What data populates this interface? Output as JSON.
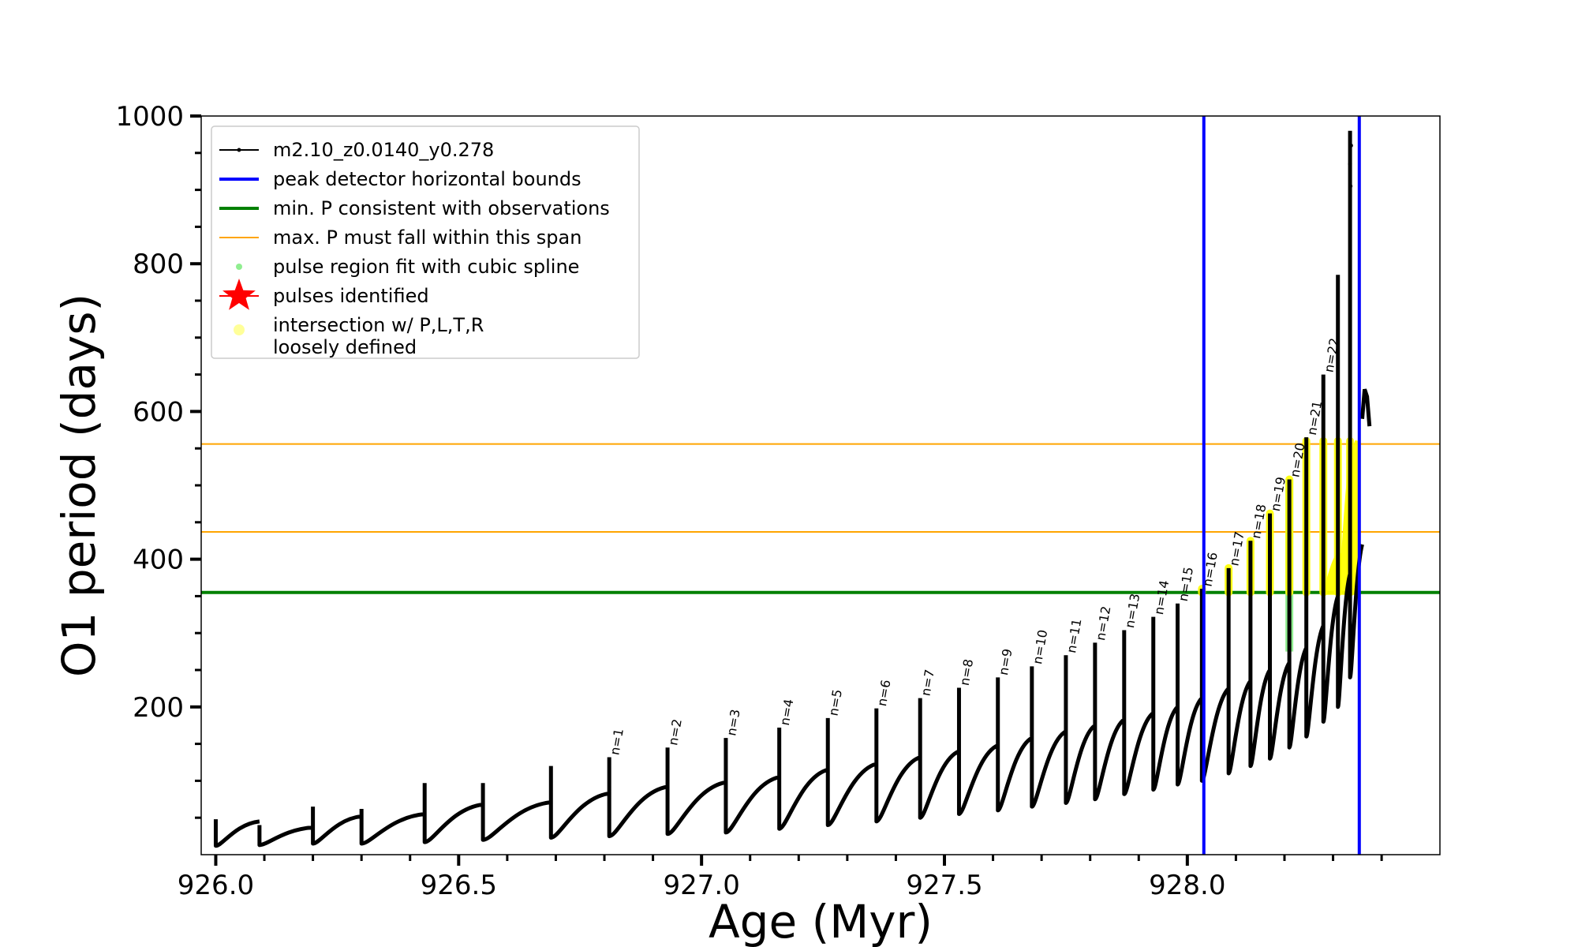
{
  "chart_data": {
    "type": "line",
    "title": "",
    "xlabel": "Age (Myr)",
    "ylabel": "O1 period (days)",
    "xlim": [
      925.97,
      928.52
    ],
    "ylim": [
      0,
      1000
    ],
    "x_ticks": [
      926.0,
      926.5,
      927.0,
      927.5,
      928.0
    ],
    "x_tick_labels": [
      "926.0",
      "926.5",
      "927.0",
      "927.5",
      "928.0"
    ],
    "y_ticks": [
      200,
      400,
      600,
      800,
      1000
    ],
    "y_tick_labels": [
      "200",
      "400",
      "600",
      "800",
      "1000"
    ],
    "grid": false,
    "legend_position": "upper-left",
    "legend": [
      {
        "label": "m2.10_z0.0140_y0.278",
        "kind": "line-marker",
        "color": "#000000"
      },
      {
        "label": "peak detector horizontal bounds",
        "kind": "line",
        "color": "#0000ff"
      },
      {
        "label": "min. P consistent with observations",
        "kind": "line",
        "color": "#008000"
      },
      {
        "label": "max. P must fall within this span",
        "kind": "thin-line",
        "color": "#ffa500"
      },
      {
        "label": "pulse region fit with cubic spline",
        "kind": "dot",
        "color": "#90ee90"
      },
      {
        "label": "pulses identified",
        "kind": "star",
        "color": "#ff0000"
      },
      {
        "label_lines": [
          "intersection w/ P,L,T,R",
          "loosely defined"
        ],
        "kind": "dot",
        "color": "#ffff99"
      }
    ],
    "vertical_bounds": [
      928.034,
      928.354
    ],
    "min_period_line": 355,
    "max_period_span": [
      437,
      556
    ],
    "pulses": [
      {
        "x": 926.0,
        "base": 45,
        "floor": 12,
        "peak": 48,
        "label": ""
      },
      {
        "x": 926.09,
        "base": 37,
        "floor": 13,
        "peak": 40,
        "label": ""
      },
      {
        "x": 926.2,
        "base": 52,
        "floor": 15,
        "peak": 65,
        "label": ""
      },
      {
        "x": 926.3,
        "base": 55,
        "floor": 15,
        "peak": 62,
        "label": ""
      },
      {
        "x": 926.43,
        "base": 68,
        "floor": 17,
        "peak": 97,
        "label": ""
      },
      {
        "x": 926.55,
        "base": 71,
        "floor": 20,
        "peak": 97,
        "label": ""
      },
      {
        "x": 926.69,
        "base": 83,
        "floor": 23,
        "peak": 120,
        "label": ""
      },
      {
        "x": 926.81,
        "base": 92,
        "floor": 25,
        "peak": 132,
        "label": "n=1"
      },
      {
        "x": 926.93,
        "base": 98,
        "floor": 28,
        "peak": 145,
        "label": "n=2"
      },
      {
        "x": 927.05,
        "base": 105,
        "floor": 30,
        "peak": 158,
        "label": "n=3"
      },
      {
        "x": 927.16,
        "base": 115,
        "floor": 35,
        "peak": 172,
        "label": "n=4"
      },
      {
        "x": 927.26,
        "base": 123,
        "floor": 40,
        "peak": 185,
        "label": "n=5"
      },
      {
        "x": 927.36,
        "base": 132,
        "floor": 45,
        "peak": 198,
        "label": "n=6"
      },
      {
        "x": 927.45,
        "base": 140,
        "floor": 50,
        "peak": 212,
        "label": "n=7"
      },
      {
        "x": 927.53,
        "base": 148,
        "floor": 55,
        "peak": 226,
        "label": "n=8"
      },
      {
        "x": 927.61,
        "base": 158,
        "floor": 60,
        "peak": 240,
        "label": "n=9"
      },
      {
        "x": 927.68,
        "base": 167,
        "floor": 65,
        "peak": 255,
        "label": "n=10"
      },
      {
        "x": 927.75,
        "base": 175,
        "floor": 70,
        "peak": 270,
        "label": "n=11"
      },
      {
        "x": 927.81,
        "base": 183,
        "floor": 75,
        "peak": 287,
        "label": "n=12"
      },
      {
        "x": 927.87,
        "base": 192,
        "floor": 82,
        "peak": 304,
        "label": "n=13"
      },
      {
        "x": 927.93,
        "base": 200,
        "floor": 88,
        "peak": 322,
        "label": "n=14"
      },
      {
        "x": 927.98,
        "base": 212,
        "floor": 95,
        "peak": 340,
        "label": "n=15"
      },
      {
        "x": 928.03,
        "base": 225,
        "floor": 100,
        "peak": 360,
        "label": "n=16"
      },
      {
        "x": 928.085,
        "base": 235,
        "floor": 110,
        "peak": 388,
        "label": "n=17"
      },
      {
        "x": 928.13,
        "base": 250,
        "floor": 120,
        "peak": 425,
        "label": "n=18"
      },
      {
        "x": 928.17,
        "base": 260,
        "floor": 130,
        "peak": 462,
        "label": "n=19"
      },
      {
        "x": 928.21,
        "base": 280,
        "floor": 145,
        "peak": 508,
        "label": "n=20"
      },
      {
        "x": 928.245,
        "base": 310,
        "floor": 160,
        "peak": 565,
        "label": "n=21"
      },
      {
        "x": 928.28,
        "base": 350,
        "floor": 180,
        "peak": 650,
        "label": "n=22"
      },
      {
        "x": 928.31,
        "base": 380,
        "floor": 200,
        "peak": 785,
        "label": ""
      },
      {
        "x": 928.335,
        "base": 420,
        "floor": 240,
        "peak": 980,
        "label": ""
      }
    ],
    "tail": [
      [
        928.36,
        590
      ],
      [
        928.365,
        630
      ],
      [
        928.37,
        620
      ],
      [
        928.375,
        580
      ]
    ]
  }
}
